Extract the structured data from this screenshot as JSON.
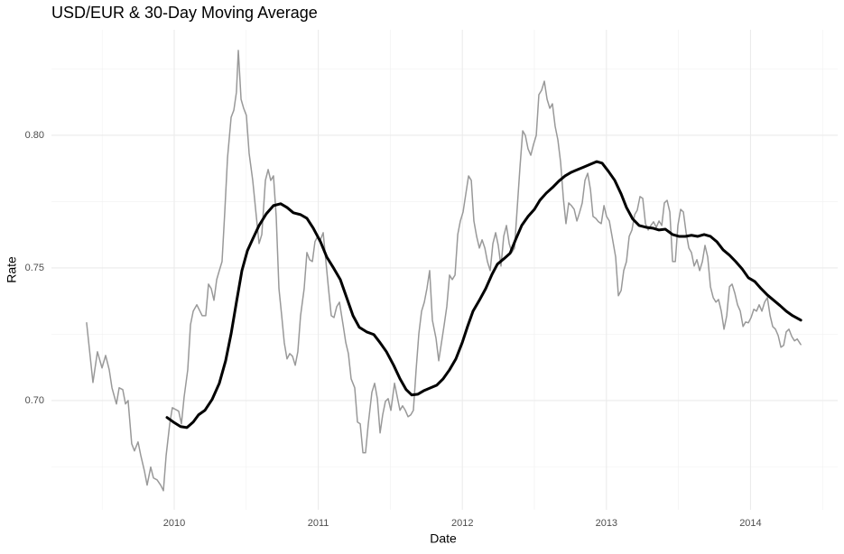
{
  "chart_data": {
    "type": "line",
    "title": "USD/EUR & 30-Day Moving Average",
    "x_label": "Date",
    "y_label": "Rate",
    "xlim": [
      2009.148,
      2014.605
    ],
    "ylim": [
      0.6588,
      0.8398
    ],
    "xticks": [
      2010,
      2011,
      2012,
      2013,
      2014
    ],
    "yticks": [
      {
        "value": 0.7,
        "label": "0.70"
      },
      {
        "value": 0.75,
        "label": "0.75"
      },
      {
        "value": 0.8,
        "label": "0.80"
      }
    ],
    "x_minor_grid": [
      2009.5,
      2010.5,
      2011.5,
      2012.5,
      2013.5,
      2014.5
    ],
    "y_minor_grid": [
      0.675,
      0.725,
      0.775,
      0.825
    ],
    "grid": true,
    "series": [
      {
        "color": "#999999",
        "width": 1.5,
        "x": [
          2009.392,
          2009.436,
          2009.467,
          2009.499,
          2009.524,
          2009.549,
          2009.568,
          2009.599,
          2009.618,
          2009.643,
          2009.662,
          2009.68,
          2009.705,
          2009.724,
          2009.749,
          2009.768,
          2009.793,
          2009.812,
          2009.837,
          2009.856,
          2009.881,
          2009.906,
          2009.925,
          2009.944,
          2009.969,
          2009.987,
          2010.031,
          2010.05,
          2010.069,
          2010.094,
          2010.113,
          2010.132,
          2010.157,
          2010.194,
          2010.219,
          2010.238,
          2010.257,
          2010.276,
          2010.295,
          2010.313,
          2010.332,
          2010.351,
          2010.37,
          2010.395,
          2010.414,
          2010.432,
          2010.445,
          2010.464,
          2010.482,
          2010.501,
          2010.52,
          2010.545,
          2010.57,
          2010.589,
          2010.608,
          2010.633,
          2010.652,
          2010.67,
          2010.689,
          2010.708,
          2010.727,
          2010.746,
          2010.764,
          2010.783,
          2010.802,
          2010.821,
          2010.84,
          2010.858,
          2010.877,
          2010.902,
          2010.921,
          2010.94,
          2010.959,
          2010.977,
          2010.996,
          2011.015,
          2011.034,
          2011.053,
          2011.071,
          2011.09,
          2011.109,
          2011.128,
          2011.147,
          2011.172,
          2011.191,
          2011.209,
          2011.228,
          2011.253,
          2011.272,
          2011.291,
          2011.31,
          2011.328,
          2011.347,
          2011.372,
          2011.391,
          2011.41,
          2011.429,
          2011.447,
          2011.466,
          2011.485,
          2011.504,
          2011.529,
          2011.548,
          2011.567,
          2011.585,
          2011.604,
          2011.623,
          2011.642,
          2011.66,
          2011.679,
          2011.698,
          2011.717,
          2011.736,
          2011.754,
          2011.773,
          2011.792,
          2011.817,
          2011.836,
          2011.855,
          2011.874,
          2011.892,
          2011.911,
          2011.93,
          2011.949,
          2011.968,
          2011.986,
          2012.005,
          2012.024,
          2012.043,
          2012.062,
          2012.08,
          2012.099,
          2012.118,
          2012.137,
          2012.156,
          2012.174,
          2012.193,
          2012.212,
          2012.231,
          2012.249,
          2012.268,
          2012.287,
          2012.306,
          2012.325,
          2012.343,
          2012.362,
          2012.381,
          2012.4,
          2012.419,
          2012.437,
          2012.456,
          2012.475,
          2012.494,
          2012.513,
          2012.531,
          2012.55,
          2012.569,
          2012.588,
          2012.607,
          2012.625,
          2012.644,
          2012.663,
          2012.682,
          2012.701,
          2012.719,
          2012.738,
          2012.757,
          2012.776,
          2012.795,
          2012.813,
          2012.832,
          2012.851,
          2012.87,
          2012.889,
          2012.907,
          2012.926,
          2012.945,
          2012.964,
          2012.983,
          2013.001,
          2013.02,
          2013.039,
          2013.064,
          2013.083,
          2013.102,
          2013.12,
          2013.139,
          2013.158,
          2013.177,
          2013.196,
          2013.214,
          2013.233,
          2013.252,
          2013.271,
          2013.29,
          2013.308,
          2013.327,
          2013.346,
          2013.365,
          2013.384,
          2013.402,
          2013.421,
          2013.44,
          2013.459,
          2013.478,
          2013.496,
          2013.515,
          2013.534,
          2013.553,
          2013.572,
          2013.59,
          2013.609,
          2013.628,
          2013.647,
          2013.666,
          2013.684,
          2013.703,
          2013.722,
          2013.741,
          2013.76,
          2013.778,
          2013.797,
          2013.816,
          2013.835,
          2013.854,
          2013.872,
          2013.891,
          2013.91,
          2013.929,
          2013.948,
          2013.966,
          2013.985,
          2014.004,
          2014.023,
          2014.042,
          2014.06,
          2014.079,
          2014.098,
          2014.117,
          2014.136,
          2014.154,
          2014.173,
          2014.192,
          2014.211,
          2014.23,
          2014.248,
          2014.267,
          2014.286,
          2014.305,
          2014.324,
          2014.349
        ],
        "values": [
          0.7293,
          0.7068,
          0.7184,
          0.7123,
          0.717,
          0.7116,
          0.7048,
          0.6987,
          0.7048,
          0.7041,
          0.6987,
          0.7,
          0.6837,
          0.681,
          0.6844,
          0.6793,
          0.6735,
          0.6681,
          0.6749,
          0.6708,
          0.6701,
          0.6681,
          0.666,
          0.6793,
          0.6912,
          0.6973,
          0.696,
          0.6912,
          0.7014,
          0.7116,
          0.7286,
          0.7337,
          0.7361,
          0.732,
          0.732,
          0.7439,
          0.7422,
          0.7378,
          0.7456,
          0.749,
          0.7524,
          0.7711,
          0.7915,
          0.8068,
          0.8095,
          0.8163,
          0.832,
          0.8136,
          0.8102,
          0.8075,
          0.7932,
          0.783,
          0.7694,
          0.7592,
          0.7626,
          0.783,
          0.7871,
          0.783,
          0.7847,
          0.7694,
          0.7422,
          0.732,
          0.7218,
          0.7157,
          0.7177,
          0.7167,
          0.7133,
          0.7184,
          0.732,
          0.7422,
          0.7558,
          0.7531,
          0.7524,
          0.7599,
          0.7619,
          0.7606,
          0.7633,
          0.7524,
          0.7422,
          0.732,
          0.7313,
          0.7354,
          0.7371,
          0.7286,
          0.7218,
          0.7177,
          0.7082,
          0.7048,
          0.6919,
          0.6912,
          0.6803,
          0.6803,
          0.6912,
          0.7031,
          0.7065,
          0.7007,
          0.6878,
          0.6946,
          0.6997,
          0.7007,
          0.6963,
          0.7065,
          0.7014,
          0.6963,
          0.698,
          0.6963,
          0.6939,
          0.6946,
          0.6963,
          0.7116,
          0.7252,
          0.7337,
          0.7371,
          0.7422,
          0.749,
          0.7303,
          0.7235,
          0.715,
          0.7218,
          0.7286,
          0.7354,
          0.7473,
          0.7456,
          0.7473,
          0.7626,
          0.7677,
          0.7711,
          0.7779,
          0.7847,
          0.783,
          0.7677,
          0.7619,
          0.7575,
          0.7606,
          0.7575,
          0.7524,
          0.749,
          0.7592,
          0.7633,
          0.7585,
          0.7507,
          0.7619,
          0.766,
          0.7592,
          0.7558,
          0.7575,
          0.7728,
          0.7881,
          0.8017,
          0.8,
          0.7949,
          0.7925,
          0.7966,
          0.8,
          0.8153,
          0.817,
          0.8204,
          0.8136,
          0.8102,
          0.8119,
          0.8034,
          0.7983,
          0.7898,
          0.7762,
          0.7667,
          0.7745,
          0.7735,
          0.7721,
          0.7677,
          0.7708,
          0.7745,
          0.783,
          0.7857,
          0.7796,
          0.7694,
          0.7687,
          0.7674,
          0.7667,
          0.7735,
          0.7694,
          0.7677,
          0.7619,
          0.7541,
          0.7395,
          0.7415,
          0.749,
          0.7524,
          0.7619,
          0.7643,
          0.7701,
          0.7718,
          0.7769,
          0.7762,
          0.7667,
          0.7643,
          0.766,
          0.7674,
          0.7653,
          0.7677,
          0.766,
          0.7745,
          0.7755,
          0.7711,
          0.7524,
          0.7524,
          0.766,
          0.7721,
          0.7711,
          0.7633,
          0.7575,
          0.7558,
          0.7507,
          0.7531,
          0.749,
          0.7524,
          0.7585,
          0.7541,
          0.7429,
          0.7388,
          0.7371,
          0.7381,
          0.7337,
          0.7269,
          0.732,
          0.7429,
          0.7439,
          0.7405,
          0.7361,
          0.7337,
          0.7279,
          0.7296,
          0.7293,
          0.7313,
          0.7344,
          0.7337,
          0.7361,
          0.7337,
          0.7371,
          0.7388,
          0.732,
          0.7279,
          0.7269,
          0.7245,
          0.7201,
          0.7208,
          0.7259,
          0.7269,
          0.7242,
          0.7225,
          0.7232,
          0.7211
        ]
      },
      {
        "color": "#000000",
        "width": 3,
        "x": [
          2009.95,
          2009.994,
          2010.044,
          2010.088,
          2010.132,
          2010.169,
          2010.213,
          2010.263,
          2010.313,
          2010.357,
          2010.395,
          2010.432,
          2010.47,
          2010.508,
          2010.545,
          2010.589,
          2010.639,
          2010.689,
          2010.739,
          2010.783,
          2010.827,
          2010.877,
          2010.921,
          2010.965,
          2011.015,
          2011.059,
          2011.109,
          2011.153,
          2011.197,
          2011.241,
          2011.285,
          2011.335,
          2011.385,
          2011.429,
          2011.473,
          2011.523,
          2011.567,
          2011.61,
          2011.648,
          2011.692,
          2011.736,
          2011.78,
          2011.823,
          2011.867,
          2011.911,
          2011.955,
          2011.999,
          2012.036,
          2012.074,
          2012.118,
          2012.162,
          2012.206,
          2012.243,
          2012.287,
          2012.331,
          2012.369,
          2012.412,
          2012.456,
          2012.5,
          2012.538,
          2012.582,
          2012.625,
          2012.669,
          2012.713,
          2012.757,
          2012.801,
          2012.845,
          2012.889,
          2012.932,
          2012.97,
          2013.014,
          2013.058,
          2013.102,
          2013.139,
          2013.183,
          2013.227,
          2013.277,
          2013.321,
          2013.365,
          2013.409,
          2013.459,
          2013.503,
          2013.547,
          2013.59,
          2013.634,
          2013.678,
          2013.722,
          2013.766,
          2013.81,
          2013.854,
          2013.897,
          2013.941,
          2013.985,
          2014.029,
          2014.073,
          2014.117,
          2014.161,
          2014.205,
          2014.248,
          2014.292,
          2014.349
        ],
        "values": [
          0.6936,
          0.6919,
          0.6902,
          0.6898,
          0.6919,
          0.6946,
          0.6963,
          0.7004,
          0.7065,
          0.715,
          0.7252,
          0.7371,
          0.749,
          0.7565,
          0.7609,
          0.766,
          0.7704,
          0.7735,
          0.7742,
          0.7728,
          0.7708,
          0.7701,
          0.7687,
          0.765,
          0.7599,
          0.7541,
          0.7497,
          0.7456,
          0.7388,
          0.732,
          0.7276,
          0.7259,
          0.7249,
          0.7218,
          0.7184,
          0.7133,
          0.7082,
          0.7041,
          0.7021,
          0.7024,
          0.7038,
          0.7048,
          0.7058,
          0.7082,
          0.7116,
          0.7157,
          0.7218,
          0.7279,
          0.7337,
          0.7378,
          0.7422,
          0.7476,
          0.7514,
          0.7534,
          0.7555,
          0.7606,
          0.766,
          0.7694,
          0.7721,
          0.7755,
          0.7782,
          0.7803,
          0.7827,
          0.7847,
          0.7861,
          0.7871,
          0.7881,
          0.7891,
          0.7901,
          0.7895,
          0.7864,
          0.783,
          0.7779,
          0.7728,
          0.7684,
          0.766,
          0.7653,
          0.765,
          0.7643,
          0.7646,
          0.7626,
          0.7619,
          0.7619,
          0.7623,
          0.7619,
          0.7626,
          0.7619,
          0.7599,
          0.7568,
          0.7548,
          0.7524,
          0.7497,
          0.7463,
          0.7449,
          0.7422,
          0.7398,
          0.7378,
          0.7358,
          0.7337,
          0.732,
          0.7303
        ]
      }
    ]
  }
}
